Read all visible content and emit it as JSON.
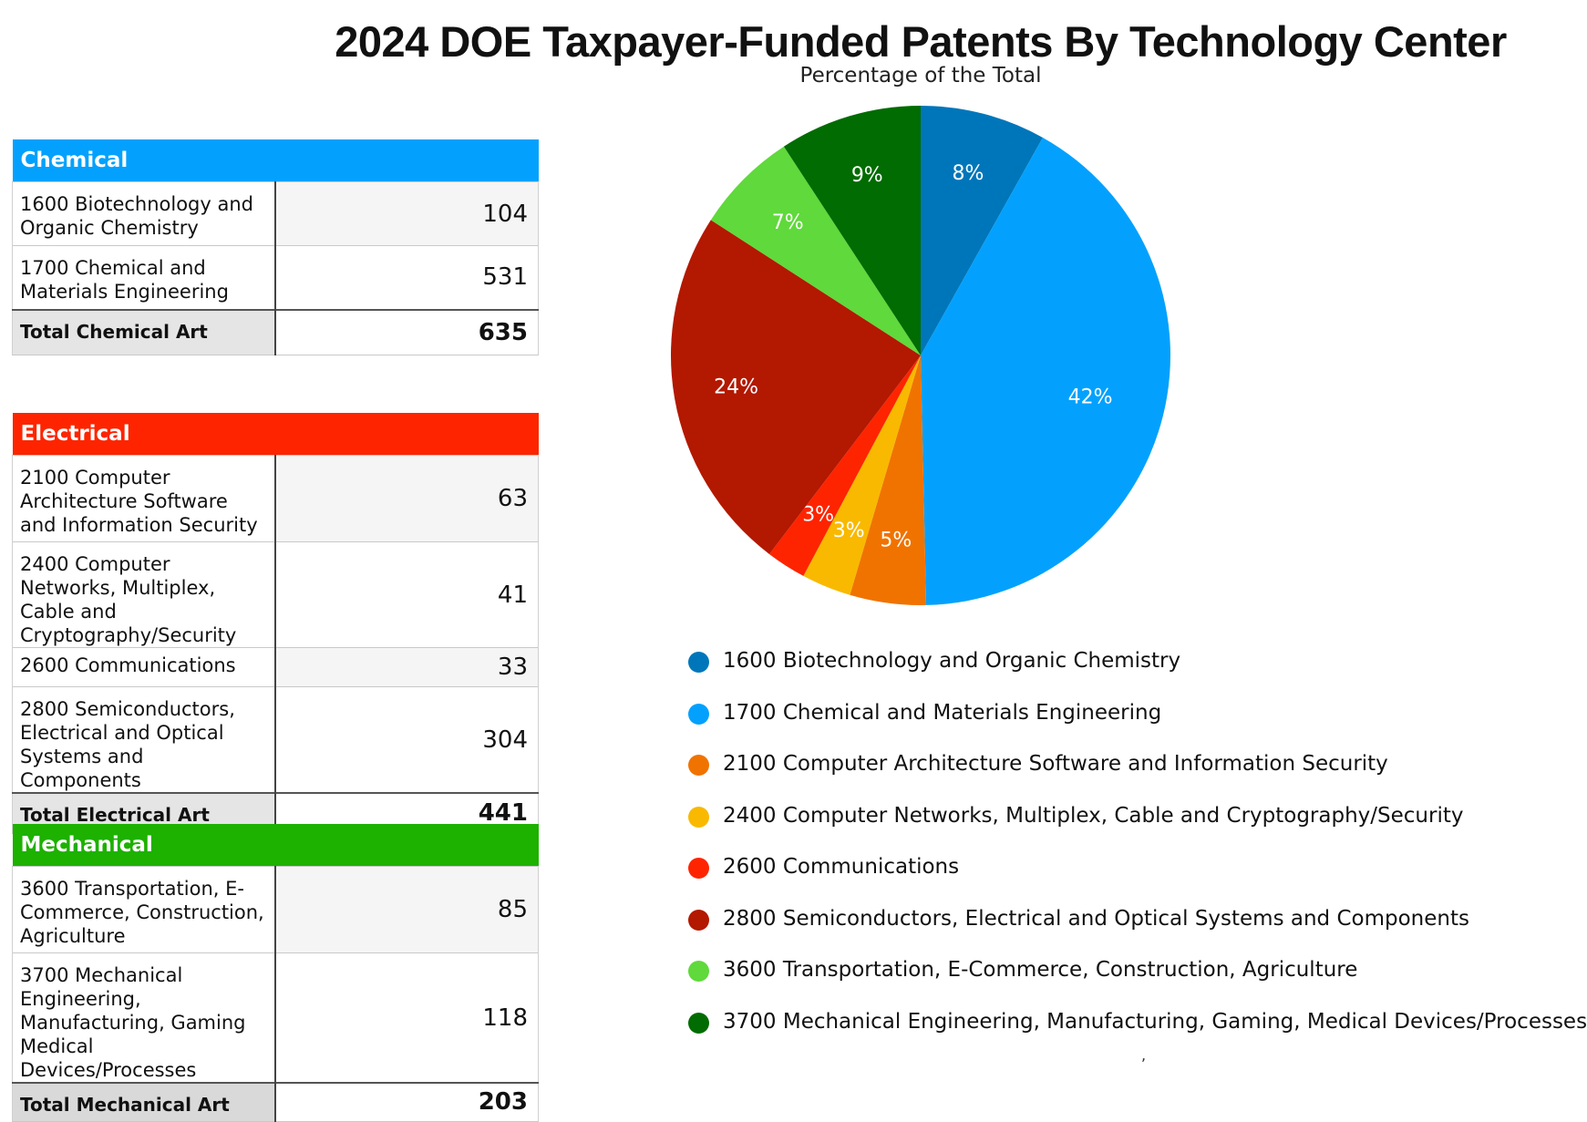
{
  "title": "2024 DOE Taxpayer-Funded Patents By Technology Center",
  "subtitle": "Percentage of the Total",
  "tables": {
    "chemical": {
      "header": "Chemical",
      "color": "#03a1fd",
      "rows": [
        {
          "label": "1600 Biotechnology and Organic Chemistry",
          "value": "104"
        },
        {
          "label": "1700 Chemical and Materials Engineering",
          "value": "531"
        }
      ],
      "total_label": "Total Chemical Art",
      "total_value": "635"
    },
    "electrical": {
      "header": "Electrical",
      "color": "#fe2400",
      "rows": [
        {
          "label": "2100 Computer Architecture Software and Information Security",
          "value": "63"
        },
        {
          "label": "2400 Computer Networks, Multiplex, Cable and Cryptography/Security",
          "value": "41"
        },
        {
          "label": "2600 Communications",
          "value": "33"
        },
        {
          "label": "2800 Semiconductors, Electrical and Optical Systems and Components",
          "value": "304"
        }
      ],
      "total_label": "Total Electrical Art",
      "total_value": "441"
    },
    "mechanical": {
      "header": "Mechanical",
      "color": "#1db100",
      "rows": [
        {
          "label": "3600 Transportation, E-Commerce, Construction, Agriculture",
          "value": "85"
        },
        {
          "label": "3700 Mechanical Engineering, Manufacturing, Gaming Medical Devices/Processes",
          "value": "118"
        }
      ],
      "total_label": "Total Mechanical Art",
      "total_value": "203"
    }
  },
  "stray_marks": [
    ","
  ],
  "chart_data": {
    "type": "pie",
    "title": "2024 DOE Taxpayer-Funded Patents By Technology Center",
    "subtitle": "Percentage of the Total",
    "legend_position": "bottom",
    "slices": [
      {
        "name": "1600 Biotechnology and Organic Chemistry",
        "value": 104,
        "label": "8%",
        "color": "#0076ba"
      },
      {
        "name": "1700 Chemical and Materials Engineering",
        "value": 531,
        "label": "42%",
        "color": "#03a1fd"
      },
      {
        "name": "2100 Computer Architecture Software and Information Security",
        "value": 63,
        "label": "5%",
        "color": "#f07300"
      },
      {
        "name": "2400 Computer Networks, Multiplex, Cable and Cryptography/Security",
        "value": 41,
        "label": "3%",
        "color": "#f9b900"
      },
      {
        "name": "2600 Communications",
        "value": 33,
        "label": "3%",
        "color": "#fe2400"
      },
      {
        "name": "2800 Semiconductors, Electrical and Optical Systems and Components",
        "value": 304,
        "label": "24%",
        "color": "#b31800"
      },
      {
        "name": "3600 Transportation, E-Commerce, Construction, Agriculture",
        "value": 85,
        "label": "7%",
        "color": "#5fd93b"
      },
      {
        "name": "3700 Mechanical Engineering, Manufacturing, Gaming, Medical Devices/Processes",
        "value": 118,
        "label": "9%",
        "color": "#006c01"
      }
    ]
  }
}
